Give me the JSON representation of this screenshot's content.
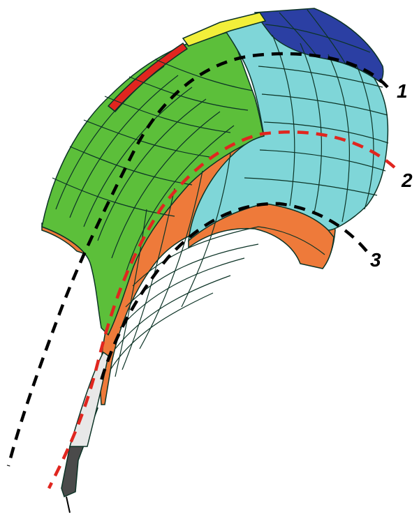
{
  "colors": {
    "green": "#5cbf3a",
    "cyan": "#7fd6d8",
    "navy": "#2b3fa3",
    "orange": "#ee7a3a",
    "yellow": "#f2ef3a",
    "red": "#e0261f",
    "mesh": "#0c3326",
    "tool_dark": "#4a4a4a",
    "tool_light": "#e8e8e8",
    "guide_black": "#000000",
    "guide_red": "#e0261f"
  },
  "labels": {
    "curve1": "1",
    "curve2": "2",
    "curve3": "3"
  }
}
